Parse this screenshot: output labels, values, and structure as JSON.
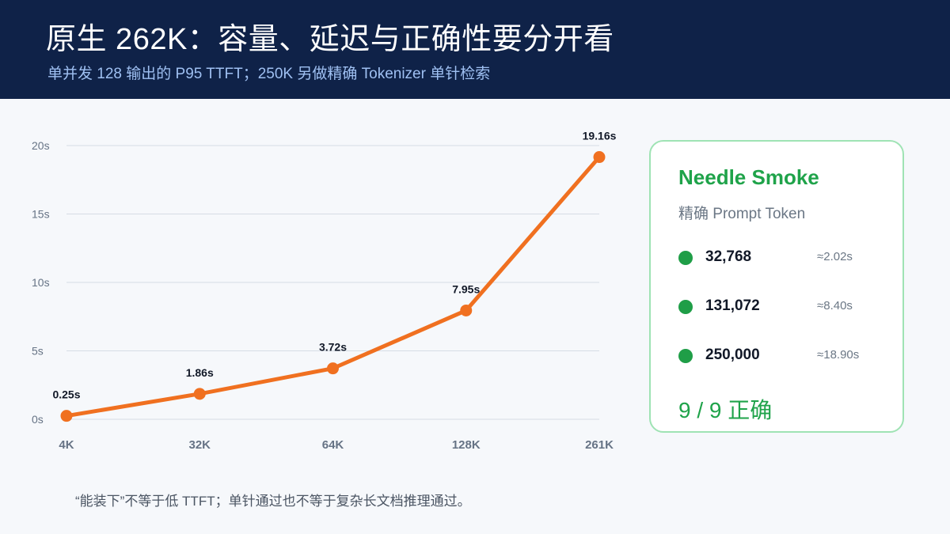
{
  "header": {
    "title": "原生 262K：容量、延迟与正确性要分开看",
    "subtitle": "单并发 128 输出的 P95 TTFT；250K 另做精确 Tokenizer 单针检索"
  },
  "chart_data": {
    "type": "line",
    "title": "",
    "xlabel": "",
    "ylabel": "",
    "categories": [
      "4K",
      "32K",
      "64K",
      "128K",
      "261K"
    ],
    "values": [
      0.25,
      1.86,
      3.72,
      7.95,
      19.16
    ],
    "point_labels": [
      "0.25s",
      "1.86s",
      "3.72s",
      "7.95s",
      "19.16s"
    ],
    "ylim": [
      0,
      20
    ],
    "yticks": [
      0,
      5,
      10,
      15,
      20
    ],
    "ytick_labels": [
      "0s",
      "5s",
      "10s",
      "15s",
      "20s"
    ],
    "grid": true,
    "line_color": "#f07020"
  },
  "card": {
    "title": "Needle Smoke",
    "subtitle": "精确 Prompt Token",
    "rows": [
      {
        "value": "32,768",
        "time": "≈2.02s"
      },
      {
        "value": "131,072",
        "time": "≈8.40s"
      },
      {
        "value": "250,000",
        "time": "≈18.90s"
      }
    ],
    "result": "9 / 9 正确",
    "accent": "#1fa34a"
  },
  "footnote": "“能装下”不等于低 TTFT；单针通过也不等于复杂长文档推理通过。"
}
